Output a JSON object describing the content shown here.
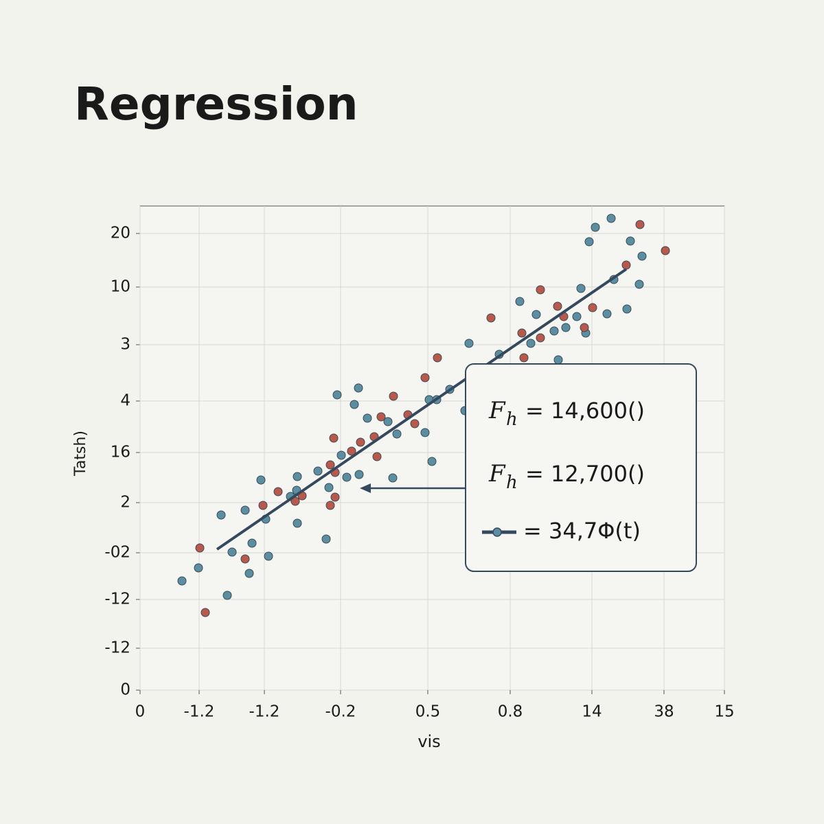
{
  "chart_data": {
    "type": "scatter",
    "title": "Regression",
    "x_label": "vis",
    "y_label": "Tatsh)",
    "xlim": [
      0,
      851
    ],
    "ylim": [
      0,
      705
    ],
    "xticks": [
      0,
      {
        "value": 86,
        "label": "-1.2"
      },
      {
        "value": 181,
        "label": "-1.2"
      },
      {
        "value": 292,
        "label": "-0.2"
      },
      {
        "value": 419,
        "label": "0.5"
      },
      {
        "value": 539,
        "label": "0.8"
      },
      {
        "value": 658,
        "label": "14"
      },
      {
        "value": 763,
        "label": "38"
      },
      {
        "value": 851,
        "label": "15"
      }
    ],
    "yticks": [
      0,
      {
        "value": 61,
        "label": "-12"
      },
      {
        "value": 132,
        "label": "-12"
      },
      {
        "value": 200,
        "label": "-02"
      },
      {
        "value": 273,
        "label": "2"
      },
      {
        "value": 346,
        "label": "16"
      },
      {
        "value": 421,
        "label": "4"
      },
      {
        "value": 503,
        "label": "3"
      },
      {
        "value": 587,
        "label": "10"
      },
      {
        "value": 665,
        "label": "20"
      }
    ],
    "grid": true,
    "series": [
      {
        "color": "#5a8ea0",
        "x": [
          61,
          85,
          118,
          127,
          134,
          153,
          159,
          163,
          176,
          183,
          187,
          219,
          228,
          229,
          229,
          259,
          271,
          275,
          287,
          293,
          301,
          312,
          318,
          319,
          331,
          361,
          368,
          374,
          415,
          421,
          425,
          432,
          451,
          473,
          479,
          523,
          553,
          569,
          577,
          603,
          609,
          620,
          636,
          642,
          649,
          654,
          663,
          680,
          686,
          690,
          709,
          714,
          727,
          731
        ],
        "y": [
          159,
          178,
          255,
          138,
          201,
          262,
          170,
          214,
          306,
          249,
          195,
          282,
          291,
          311,
          243,
          319,
          220,
          295,
          430,
          342,
          310,
          416,
          440,
          314,
          396,
          391,
          309,
          373,
          375,
          423,
          333,
          423,
          438,
          407,
          505,
          489,
          566,
          505,
          547,
          523,
          481,
          528,
          544,
          585,
          520,
          653,
          674,
          548,
          687,
          598,
          555,
          654,
          591,
          632
        ]
      },
      {
        "color": "#b8594c",
        "x": [
          87,
          95,
          153,
          179,
          201,
          236,
          226,
          277,
          282,
          284,
          284,
          277,
          308,
          321,
          341,
          345,
          351,
          369,
          390,
          400,
          415,
          433,
          511,
          556,
          559,
          583,
          583,
          608,
          617,
          647,
          659,
          708,
          728,
          765
        ],
        "y": [
          207,
          113,
          191,
          269,
          289,
          283,
          275,
          328,
          367,
          317,
          281,
          269,
          348,
          361,
          369,
          340,
          398,
          428,
          401,
          388,
          455,
          484,
          542,
          520,
          484,
          583,
          513,
          559,
          544,
          528,
          557,
          619,
          678,
          640
        ]
      }
    ],
    "fit": {
      "color": "#34495e",
      "x": [
        112,
        708
      ],
      "y": [
        205,
        613
      ]
    },
    "annotations": [
      {
        "symbol": "F",
        "sub": "h",
        "text": "= 14,600()"
      },
      {
        "symbol": "F",
        "sub": "h",
        "text": "= 12,700()"
      },
      {
        "text": "= 34,7Φ(t)"
      }
    ]
  }
}
